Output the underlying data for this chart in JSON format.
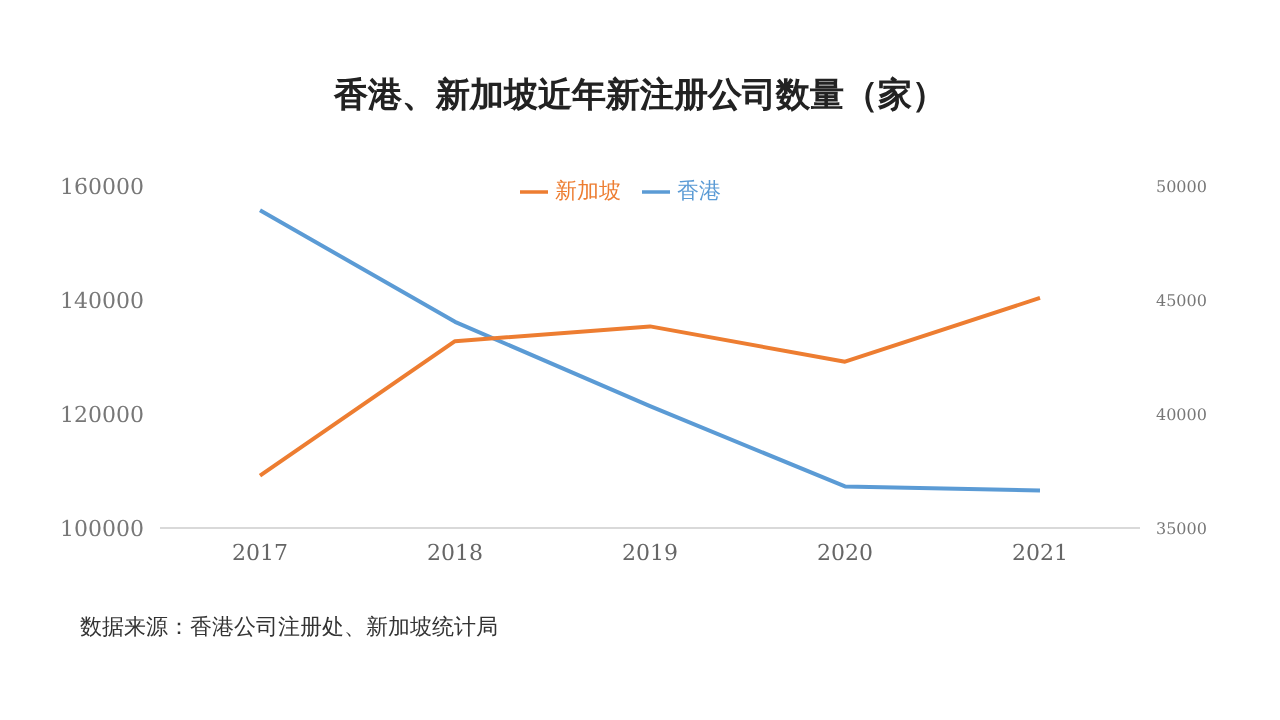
{
  "chart_data": {
    "type": "line",
    "title": "香港、新加坡近年新注册公司数量（家）",
    "categories": [
      "2017",
      "2018",
      "2019",
      "2020",
      "2021"
    ],
    "series": [
      {
        "name": "香港",
        "color": "#5b9bd5",
        "values": [
          155800,
          136200,
          121400,
          107300,
          106600
        ]
      },
      {
        "name": "新加坡",
        "color": "#ed7d31",
        "axis": "y2",
        "values": [
          37300,
          43200,
          43850,
          42300,
          45100
        ]
      }
    ],
    "ylim": [
      100000,
      160000
    ],
    "yticks": [
      100000,
      120000,
      140000,
      160000
    ],
    "y2lim": [
      35000,
      50000
    ],
    "y2ticks": [
      35000,
      40000,
      45000,
      50000
    ],
    "grid": false,
    "legend": "top",
    "marker": "none",
    "line_style": "solid",
    "annotations": [
      "数据来源：香港公司注册处、新加坡统计局"
    ]
  }
}
